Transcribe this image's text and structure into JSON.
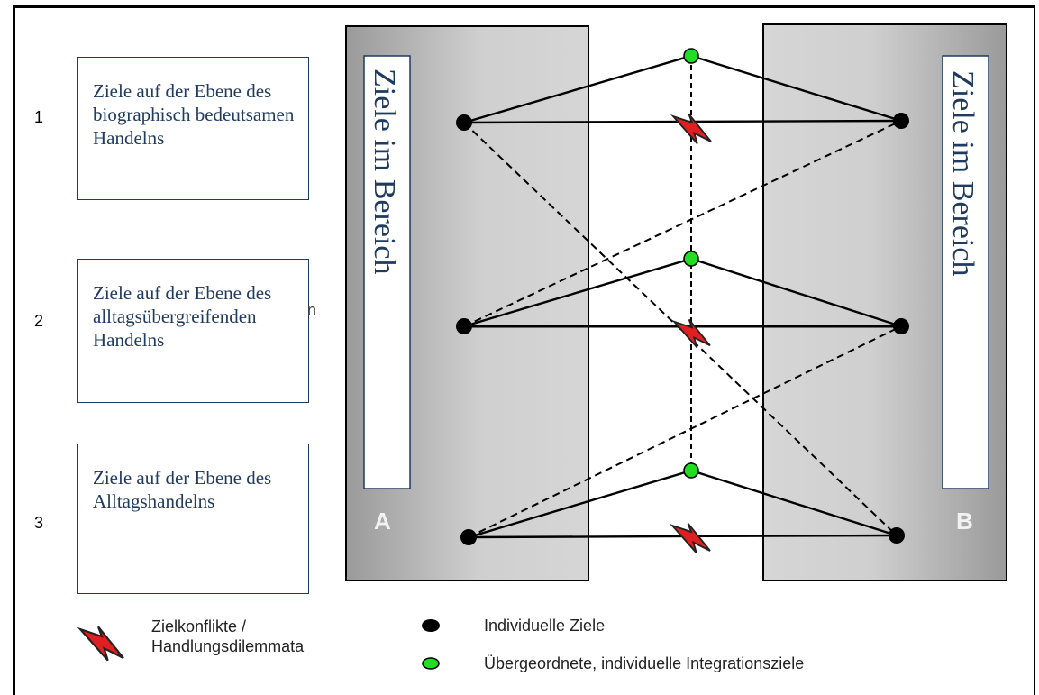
{
  "levels": [
    {
      "number": "1",
      "label": "Ziele auf der Ebene des biographisch bedeutsamen Handelns"
    },
    {
      "number": "2",
      "label": "Ziele auf der Ebene des alltagsübergreifenden Handelns"
    },
    {
      "number": "3",
      "label": "Ziele auf der Ebene des Alltagshandelns"
    }
  ],
  "stray_glyph": "n",
  "areas": {
    "a": {
      "letter": "A",
      "label": "Ziele im Bereich"
    },
    "b": {
      "letter": "B",
      "label": "Ziele im Bereich"
    }
  },
  "legend": {
    "conflict": "Zielkonflikte / Handlungsdilemmata",
    "individual": "Individuelle Ziele",
    "integration": "Übergeordnete, individuelle Integrationsziele"
  },
  "colors": {
    "box_text": "#1f3b60",
    "goal_dot": "#000000",
    "integration_dot": "#22dd22",
    "conflict": "#e02020"
  }
}
